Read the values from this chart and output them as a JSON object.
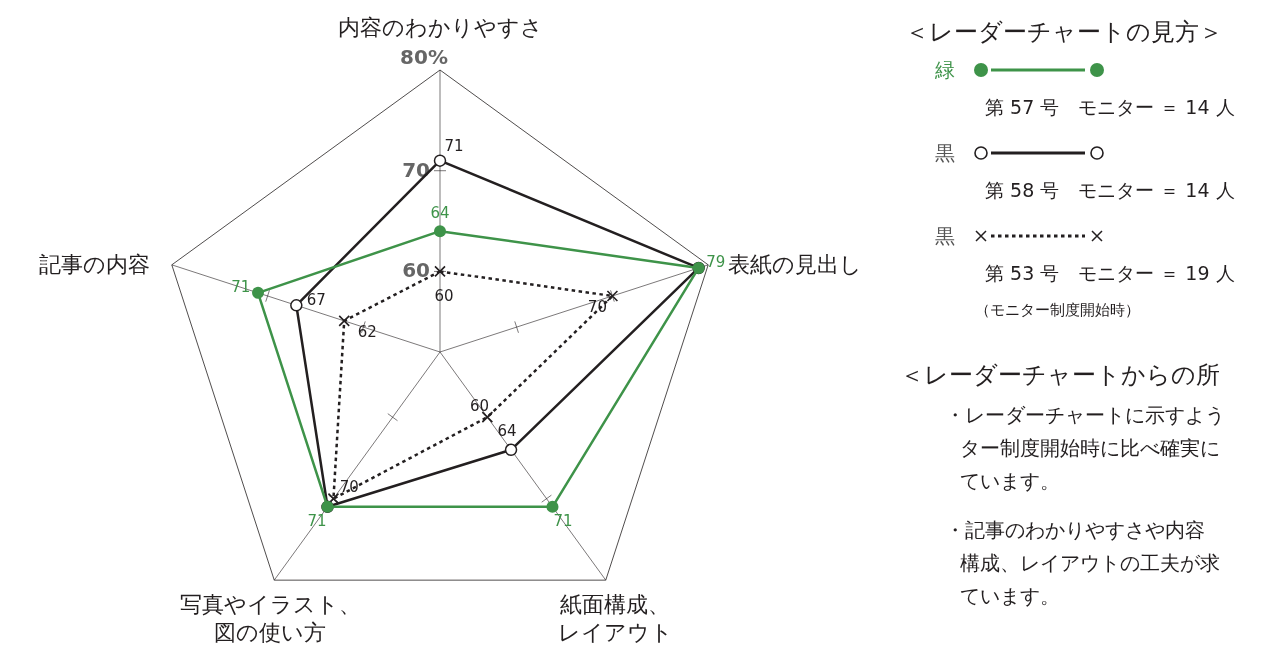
{
  "chart_data": {
    "type": "radar",
    "categories": [
      "内容のわかりやすさ",
      "表紙の見出し",
      "紙面構成、レイアウト",
      "写真やイラスト、図の使い方",
      "記事の内容"
    ],
    "ylim": [
      52,
      80
    ],
    "yticks": [
      {
        "value": 60,
        "label": "60"
      },
      {
        "value": 70,
        "label": "70"
      },
      {
        "value": 80,
        "label": "80%"
      }
    ],
    "legend": "right",
    "legend_title": "＜レーダーチャートの見方＞",
    "series": [
      {
        "name": "第 57 号　モニター ＝ 14 人",
        "color": "#3e9349",
        "values": [
          64,
          79,
          71,
          71,
          71
        ],
        "marker": "circle",
        "line_style": "solid",
        "value_labels": [
          "64",
          "79",
          "71",
          "71",
          "71"
        ]
      },
      {
        "name": "第 58 号　モニター ＝ 14 人",
        "color": "#231f20",
        "values": [
          71,
          79,
          64,
          71,
          67
        ],
        "marker": "open-circle",
        "line_style": "solid",
        "value_labels": [
          "71",
          null,
          "64",
          null,
          "67"
        ]
      },
      {
        "name": "第 53 号　モニター ＝ 19 人",
        "color": "#231f20",
        "values": [
          60,
          70,
          60,
          70,
          62
        ],
        "marker": "cross",
        "line_style": "dotted",
        "value_labels": [
          "60",
          "70",
          "60",
          "70",
          "62"
        ]
      }
    ],
    "annotations": [
      "緑",
      "黒",
      "黒",
      "（モニター制度開始時）",
      "＜レーダーチャートからの所",
      "・レーダーチャートに示すよう",
      "ター制度開始時に比べ確実に",
      "ています。",
      "・記事のわかりやすさや内容",
      "構成、レイアウトの工夫が求",
      "ています。"
    ]
  }
}
